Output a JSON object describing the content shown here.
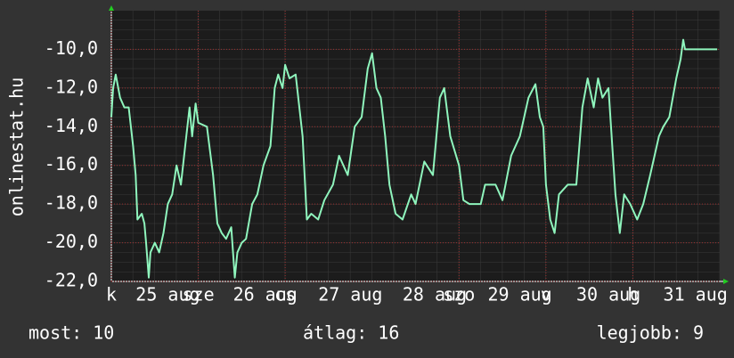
{
  "chart_data": {
    "type": "line",
    "y_label": "onlinestat.hu",
    "xlim": [
      0,
      7
    ],
    "ylim": [
      -22,
      -8
    ],
    "yticks": [
      {
        "value": -22,
        "label": "-22,0"
      },
      {
        "value": -20,
        "label": "-20,0"
      },
      {
        "value": -18,
        "label": "-18,0"
      },
      {
        "value": -16,
        "label": "-16,0"
      },
      {
        "value": -14,
        "label": "-14,0"
      },
      {
        "value": -12,
        "label": "-12,0"
      },
      {
        "value": -10,
        "label": "-10,0"
      }
    ],
    "xticks": [
      {
        "value": 0,
        "label": "k"
      },
      {
        "value": 0.65,
        "label": "25 aug"
      },
      {
        "value": 1,
        "label": "sze"
      },
      {
        "value": 1.77,
        "label": "26 aug"
      },
      {
        "value": 2,
        "label": "cs"
      },
      {
        "value": 2.75,
        "label": "27 aug"
      },
      {
        "value": 3.72,
        "label": "28 aug"
      },
      {
        "value": 4,
        "label": "szo"
      },
      {
        "value": 4.7,
        "label": "29 aug"
      },
      {
        "value": 5,
        "label": "v"
      },
      {
        "value": 5.72,
        "label": "30 aug"
      },
      {
        "value": 6,
        "label": "h"
      },
      {
        "value": 6.72,
        "label": "31 aug"
      }
    ],
    "grid": true,
    "x": [
      0,
      0.02,
      0.05,
      0.1,
      0.15,
      0.2,
      0.25,
      0.28,
      0.3,
      0.35,
      0.38,
      0.4,
      0.43,
      0.45,
      0.5,
      0.55,
      0.6,
      0.65,
      0.7,
      0.75,
      0.8,
      0.85,
      0.9,
      0.93,
      0.97,
      1.0,
      1.1,
      1.17,
      1.22,
      1.27,
      1.32,
      1.38,
      1.42,
      1.45,
      1.5,
      1.55,
      1.62,
      1.68,
      1.75,
      1.83,
      1.88,
      1.92,
      1.97,
      2.0,
      2.05,
      2.12,
      2.2,
      2.25,
      2.3,
      2.38,
      2.45,
      2.55,
      2.62,
      2.72,
      2.8,
      2.88,
      2.95,
      3.0,
      3.05,
      3.1,
      3.15,
      3.2,
      3.27,
      3.35,
      3.45,
      3.5,
      3.6,
      3.7,
      3.78,
      3.83,
      3.9,
      4.0,
      4.05,
      4.12,
      4.25,
      4.3,
      4.42,
      4.5,
      4.6,
      4.7,
      4.8,
      4.88,
      4.93,
      4.97,
      5.0,
      5.05,
      5.1,
      5.15,
      5.25,
      5.35,
      5.42,
      5.48,
      5.55,
      5.6,
      5.65,
      5.72,
      5.8,
      5.85,
      5.9,
      5.97,
      6.05,
      6.12,
      6.2,
      6.3,
      6.35,
      6.42,
      6.5,
      6.55,
      6.58,
      6.6,
      6.97
    ],
    "series": [
      {
        "color": "#8ff5bd",
        "values": [
          -13.5,
          -12,
          -11.3,
          -12.5,
          -13,
          -13,
          -15,
          -16.5,
          -18.8,
          -18.5,
          -19,
          -20,
          -21.8,
          -20.5,
          -20,
          -20.5,
          -19.5,
          -18,
          -17.5,
          -16,
          -17,
          -15,
          -13,
          -14.5,
          -12.8,
          -13.8,
          -14,
          -16.5,
          -19,
          -19.5,
          -19.8,
          -19.2,
          -21.8,
          -20.5,
          -20,
          -19.8,
          -18,
          -17.5,
          -16,
          -15,
          -12,
          -11.3,
          -12,
          -10.8,
          -11.5,
          -11.3,
          -14.5,
          -18.8,
          -18.5,
          -18.8,
          -17.8,
          -17,
          -15.5,
          -16.5,
          -14,
          -13.5,
          -11,
          -10.2,
          -12,
          -12.5,
          -14.5,
          -17,
          -18.5,
          -18.8,
          -17.5,
          -18,
          -15.8,
          -16.5,
          -12.5,
          -12,
          -14.5,
          -16,
          -17.8,
          -18,
          -18,
          -17,
          -17,
          -17.8,
          -15.5,
          -14.5,
          -12.5,
          -11.8,
          -13.5,
          -14,
          -17,
          -18.8,
          -19.5,
          -17.5,
          -17,
          -17,
          -13,
          -11.5,
          -13,
          -11.5,
          -12.5,
          -12,
          -17.5,
          -19.5,
          -17.5,
          -18,
          -18.8,
          -18,
          -16.5,
          -14.5,
          -14,
          -13.5,
          -11.5,
          -10.5,
          -9.5,
          -10,
          -10
        ]
      }
    ],
    "footer": [
      "most: 10",
      "átlag: 16",
      "legjobb: 9"
    ]
  }
}
